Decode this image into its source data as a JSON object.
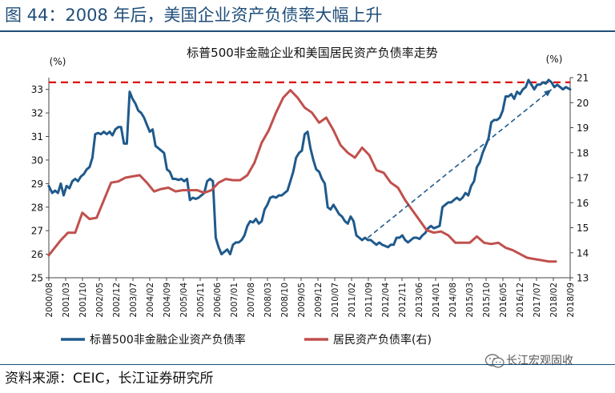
{
  "header": {
    "title": "图 44：2008 年后，美国企业资产负债率大幅上升"
  },
  "footer": {
    "source": "资料来源：CEIC，长江证券研究所",
    "watermark": "长江宏观固收",
    "watermark_icon": "wechat-icon"
  },
  "colors": {
    "series_left": "#1f5a8c",
    "series_right": "#c0504d",
    "ref_line": "#e00000",
    "trend_arrow": "#1f5a8c",
    "title": "#1f4e79"
  },
  "chart_data": {
    "type": "line",
    "title": "标普500非金融企业和美国居民资产负债率走势",
    "left_unit": "(%)",
    "right_unit": "(%)",
    "left_ylim": [
      25,
      33.5
    ],
    "right_ylim": [
      13,
      21
    ],
    "left_ticks": [
      25,
      26,
      27,
      28,
      29,
      30,
      31,
      32,
      33
    ],
    "right_ticks": [
      13,
      14,
      15,
      16,
      17,
      18,
      19,
      20,
      21
    ],
    "x_range": [
      2000.583,
      2018.75
    ],
    "x_ticks": [
      "2000/08",
      "2001/03",
      "2001/10",
      "2002/05",
      "2002/12",
      "2003/07",
      "2004/02",
      "2004/09",
      "2005/04",
      "2005/11",
      "2006/06",
      "2007/01",
      "2007/08",
      "2008/03",
      "2008/10",
      "2009/05",
      "2009/12",
      "2010/07",
      "2011/02",
      "2011/09",
      "2012/04",
      "2012/11",
      "2013/06",
      "2014/01",
      "2014/08",
      "2015/03",
      "2015/10",
      "2016/05",
      "2016/12",
      "2017/07",
      "2018/02",
      "2018/09"
    ],
    "reference_line": {
      "axis": "left",
      "value": 33.3,
      "style": "dashed"
    },
    "trend_arrow": {
      "from": [
        2011.7,
        26.7
      ],
      "to": [
        2018.1,
        33.0
      ],
      "axis": "left",
      "style": "dashed"
    },
    "legend_position": "bottom",
    "series": [
      {
        "name": "标普500非金融企业资产负债率",
        "axis": "left",
        "x": [
          2000.58,
          2000.7,
          2000.8,
          2000.9,
          2001.0,
          2001.1,
          2001.2,
          2001.3,
          2001.4,
          2001.5,
          2001.6,
          2001.7,
          2001.8,
          2001.9,
          2002.0,
          2002.1,
          2002.2,
          2002.3,
          2002.4,
          2002.5,
          2002.6,
          2002.7,
          2002.8,
          2002.9,
          2003.0,
          2003.1,
          2003.2,
          2003.3,
          2003.4,
          2003.5,
          2003.6,
          2003.7,
          2003.8,
          2003.9,
          2004.0,
          2004.1,
          2004.2,
          2004.3,
          2004.4,
          2004.5,
          2004.6,
          2004.7,
          2004.8,
          2004.9,
          2005.0,
          2005.1,
          2005.2,
          2005.3,
          2005.4,
          2005.5,
          2005.6,
          2005.7,
          2005.8,
          2005.9,
          2006.0,
          2006.1,
          2006.2,
          2006.3,
          2006.4,
          2006.5,
          2006.6,
          2006.7,
          2006.8,
          2006.9,
          2007.0,
          2007.1,
          2007.2,
          2007.3,
          2007.4,
          2007.5,
          2007.6,
          2007.7,
          2007.8,
          2007.9,
          2008.0,
          2008.1,
          2008.2,
          2008.3,
          2008.4,
          2008.5,
          2008.6,
          2008.7,
          2008.8,
          2008.9,
          2009.0,
          2009.1,
          2009.2,
          2009.3,
          2009.4,
          2009.5,
          2009.6,
          2009.7,
          2009.8,
          2009.9,
          2010.0,
          2010.1,
          2010.2,
          2010.3,
          2010.4,
          2010.5,
          2010.6,
          2010.7,
          2010.8,
          2010.9,
          2011.0,
          2011.1,
          2011.2,
          2011.3,
          2011.4,
          2011.5,
          2011.6,
          2011.7,
          2011.8,
          2011.9,
          2012.0,
          2012.1,
          2012.2,
          2012.3,
          2012.4,
          2012.5,
          2012.6,
          2012.7,
          2012.8,
          2012.9,
          2013.0,
          2013.1,
          2013.2,
          2013.3,
          2013.4,
          2013.5,
          2013.6,
          2013.7,
          2013.8,
          2013.9,
          2014.0,
          2014.1,
          2014.2,
          2014.3,
          2014.4,
          2014.5,
          2014.6,
          2014.7,
          2014.8,
          2014.9,
          2015.0,
          2015.1,
          2015.2,
          2015.3,
          2015.4,
          2015.5,
          2015.6,
          2015.7,
          2015.8,
          2015.9,
          2016.0,
          2016.1,
          2016.2,
          2016.3,
          2016.4,
          2016.5,
          2016.6,
          2016.7,
          2016.8,
          2016.9,
          2017.0,
          2017.1,
          2017.2,
          2017.3,
          2017.4,
          2017.5,
          2017.6,
          2017.7,
          2017.8,
          2017.9,
          2018.0,
          2018.1,
          2018.2,
          2018.3,
          2018.4,
          2018.5,
          2018.6,
          2018.75
        ],
        "values": [
          28.9,
          28.6,
          28.7,
          28.6,
          29.0,
          28.5,
          28.9,
          28.8,
          29.1,
          29.2,
          29.1,
          29.3,
          29.4,
          29.6,
          29.7,
          30.1,
          31.1,
          31.15,
          31.1,
          31.2,
          31.1,
          31.2,
          31.05,
          31.3,
          31.4,
          31.4,
          30.7,
          30.7,
          32.9,
          32.6,
          32.4,
          32.1,
          32.0,
          31.8,
          31.5,
          31.2,
          31.3,
          30.6,
          30.5,
          30.4,
          30.3,
          29.6,
          29.5,
          29.2,
          29.2,
          29.15,
          29.2,
          29.1,
          29.2,
          28.3,
          28.4,
          28.35,
          28.4,
          28.5,
          28.6,
          29.1,
          29.2,
          29.1,
          26.7,
          26.3,
          26.0,
          26.1,
          26.2,
          26.0,
          26.4,
          26.5,
          26.5,
          26.6,
          26.8,
          27.2,
          27.4,
          27.35,
          27.5,
          27.3,
          27.4,
          27.9,
          28.1,
          28.4,
          28.45,
          28.4,
          28.5,
          28.5,
          28.6,
          28.7,
          29.1,
          29.5,
          30.1,
          30.3,
          30.4,
          31.1,
          31.2,
          30.5,
          30.0,
          29.6,
          29.5,
          29.2,
          29.0,
          28.0,
          27.9,
          28.1,
          27.9,
          27.7,
          27.6,
          27.4,
          27.3,
          27.6,
          27.4,
          26.8,
          26.7,
          26.6,
          26.7,
          26.6,
          26.6,
          26.5,
          26.4,
          26.5,
          26.4,
          26.35,
          26.3,
          26.4,
          26.4,
          26.7,
          26.7,
          26.8,
          26.6,
          26.5,
          26.6,
          26.7,
          26.7,
          26.65,
          26.8,
          26.9,
          27.1,
          27.2,
          27.1,
          27.15,
          27.2,
          28.0,
          28.1,
          28.2,
          28.2,
          28.3,
          28.4,
          28.3,
          28.4,
          28.6,
          28.5,
          28.9,
          29.1,
          29.7,
          29.9,
          30.3,
          30.6,
          30.9,
          31.6,
          31.7,
          31.7,
          31.8,
          32.1,
          32.7,
          32.7,
          32.8,
          32.6,
          32.9,
          32.8,
          33.0,
          33.1,
          33.4,
          33.2,
          33.0,
          33.2,
          33.2,
          33.3,
          33.25,
          33.4,
          33.3,
          33.1,
          33.2,
          33.1,
          33.0,
          33.1,
          33.0
        ]
      },
      {
        "name": "居民资产负债率(右)",
        "axis": "right",
        "x": [
          2000.58,
          2001.0,
          2001.25,
          2001.5,
          2001.75,
          2002.0,
          2002.25,
          2002.5,
          2002.75,
          2003.0,
          2003.25,
          2003.5,
          2003.75,
          2004.0,
          2004.25,
          2004.5,
          2004.75,
          2005.0,
          2005.25,
          2005.5,
          2005.75,
          2006.0,
          2006.25,
          2006.5,
          2006.75,
          2007.0,
          2007.25,
          2007.5,
          2007.75,
          2008.0,
          2008.25,
          2008.5,
          2008.75,
          2009.0,
          2009.25,
          2009.5,
          2009.75,
          2010.0,
          2010.25,
          2010.5,
          2010.75,
          2011.0,
          2011.25,
          2011.5,
          2011.75,
          2012.0,
          2012.25,
          2012.5,
          2012.75,
          2013.0,
          2013.25,
          2013.5,
          2013.75,
          2014.0,
          2014.25,
          2014.5,
          2014.75,
          2015.0,
          2015.25,
          2015.5,
          2015.75,
          2016.0,
          2016.25,
          2016.5,
          2016.75,
          2017.0,
          2017.25,
          2017.5,
          2017.75,
          2018.0,
          2018.25
        ],
        "values": [
          13.9,
          14.5,
          14.8,
          14.8,
          15.6,
          15.35,
          15.4,
          16.1,
          16.8,
          16.85,
          17.0,
          17.05,
          17.1,
          16.8,
          16.45,
          16.55,
          16.6,
          16.45,
          16.5,
          16.5,
          16.5,
          16.4,
          16.5,
          16.8,
          16.95,
          16.9,
          16.9,
          17.1,
          17.6,
          18.4,
          18.9,
          19.6,
          20.2,
          20.5,
          20.2,
          19.8,
          19.6,
          19.2,
          19.4,
          18.9,
          18.3,
          18.0,
          17.8,
          18.2,
          17.9,
          17.3,
          17.2,
          16.8,
          16.6,
          16.1,
          15.7,
          15.3,
          14.9,
          14.8,
          14.85,
          14.7,
          14.4,
          14.4,
          14.4,
          14.65,
          14.4,
          14.35,
          14.4,
          14.2,
          14.1,
          13.95,
          13.8,
          13.75,
          13.7,
          13.65,
          13.65
        ]
      }
    ]
  }
}
